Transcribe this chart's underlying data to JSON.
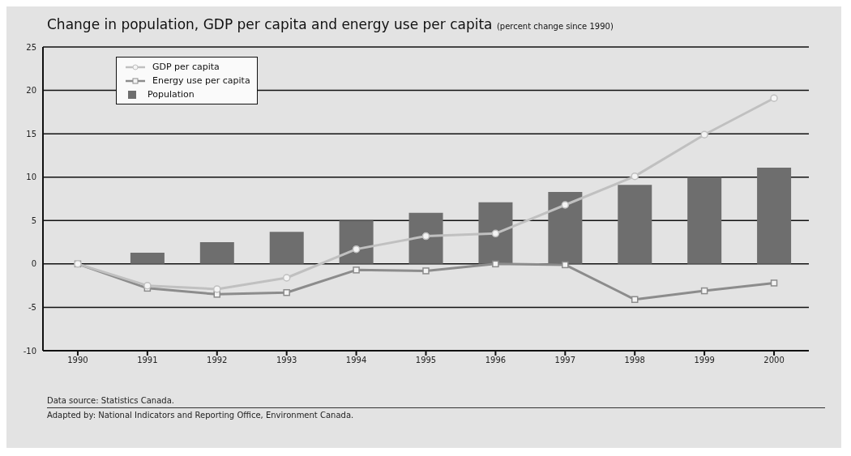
{
  "chart_data": {
    "type": "bar",
    "title": "Change in population, GDP per capita and energy use per capita",
    "subtitle": "(percent change since 1990)",
    "categories": [
      "1990",
      "1991",
      "1992",
      "1993",
      "1994",
      "1995",
      "1996",
      "1997",
      "1998",
      "1999",
      "2000"
    ],
    "series": [
      {
        "name": "GDP per capita",
        "type": "line",
        "color": "#c0c0c0",
        "marker": "circle",
        "values": [
          0,
          -2.5,
          -2.9,
          -1.6,
          1.7,
          3.2,
          3.5,
          6.8,
          10.1,
          14.9,
          19.1
        ]
      },
      {
        "name": "Energy use per capita",
        "type": "line",
        "color": "#8c8c8c",
        "marker": "square",
        "values": [
          0,
          -2.8,
          -3.5,
          -3.3,
          -0.7,
          -0.8,
          0,
          -0.1,
          -4.1,
          -3.1,
          -2.2
        ]
      },
      {
        "name": "Population",
        "color": "#6e6e6e",
        "values": [
          0,
          1.3,
          2.5,
          3.7,
          5.0,
          5.9,
          7.1,
          8.3,
          9.1,
          10.0,
          11.1
        ]
      }
    ],
    "ylim": [
      -10,
      25
    ],
    "yticks": [
      -10,
      -5,
      0,
      5,
      10,
      15,
      20,
      25
    ],
    "grid": "y",
    "legend": "top left",
    "annotations": [
      "Data source: Statistics Canada.",
      "Adapted by: National Indicators and Reporting Office, Environment Canada."
    ]
  }
}
